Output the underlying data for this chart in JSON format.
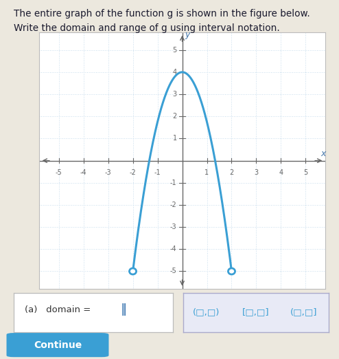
{
  "title_line1": "The entire graph of the function g is shown in the figure below.",
  "title_line2": "Write the domain and range of g using interval notation.",
  "curve_color": "#3a9fd4",
  "curve_linewidth": 2.2,
  "x_left_endpoint": -2,
  "y_left_endpoint": -5,
  "x_right_endpoint": 2,
  "y_right_endpoint": -5,
  "x_peak": 0,
  "y_peak": 4,
  "xlim": [
    -5.8,
    5.8
  ],
  "ylim": [
    -5.8,
    5.8
  ],
  "xticks": [
    -5,
    -4,
    -3,
    -2,
    -1,
    1,
    2,
    3,
    4,
    5
  ],
  "yticks": [
    -5,
    -4,
    -3,
    -2,
    -1,
    1,
    2,
    3,
    4,
    5
  ],
  "grid_color": "#c8dded",
  "axis_color": "#666666",
  "background_color": "#ece8de",
  "plot_bg_color": "#ffffff",
  "continue_btn_color": "#3a9fd4",
  "continue_btn_text": "Continue"
}
